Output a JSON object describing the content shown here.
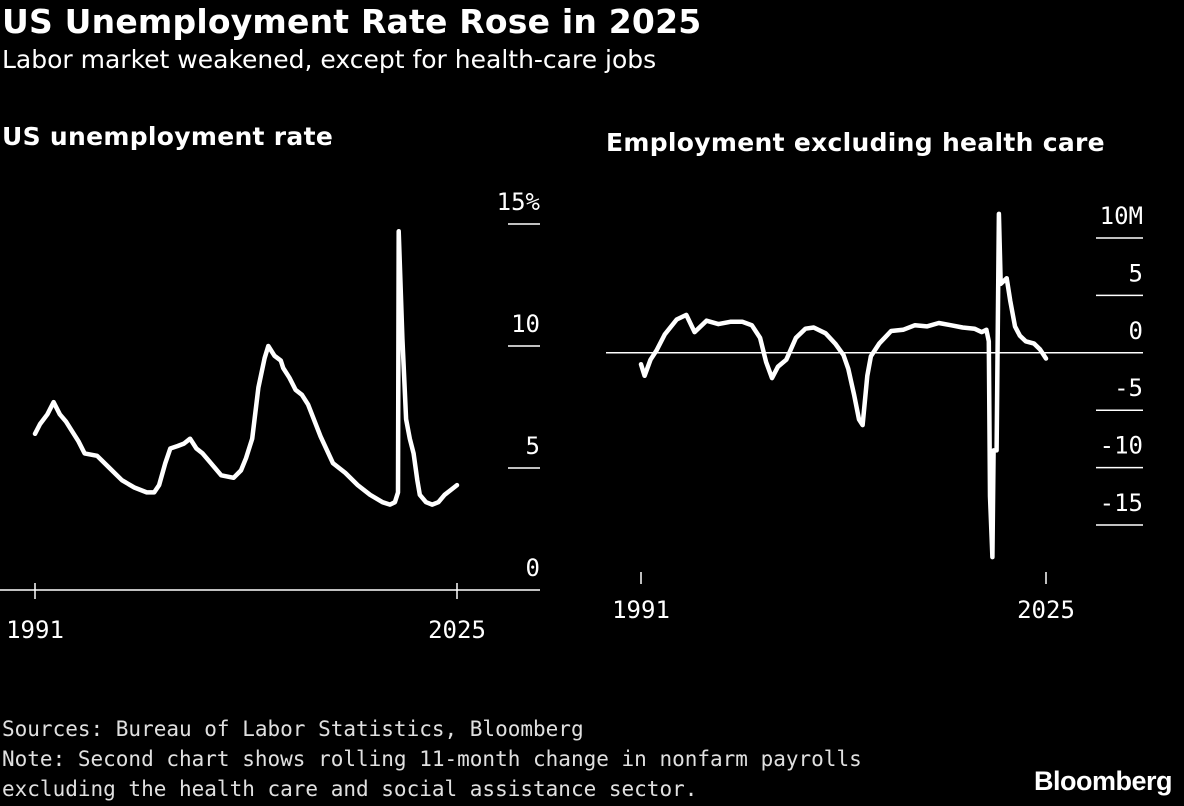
{
  "header": {
    "title": "US Unemployment Rate Rose in 2025",
    "subtitle": "Labor market weakened, except for health-care jobs"
  },
  "footer": {
    "sources": "Sources: Bureau of Labor Statistics, Bloomberg",
    "note_line1": "Note: Second chart shows rolling 11-month change in nonfarm payrolls",
    "note_line2": "excluding the health care and social assistance sector.",
    "logo": "Bloomberg"
  },
  "colors": {
    "background": "#000000",
    "line": "#ffffff",
    "text": "#ffffff"
  },
  "chart_data": [
    {
      "type": "line",
      "title": "US unemployment rate",
      "xlabel": "",
      "ylabel": "",
      "xlim": [
        1991,
        2025
      ],
      "ylim": [
        0,
        15
      ],
      "y_ticks": [
        15,
        10,
        5,
        0
      ],
      "y_tick_labels": [
        "15%",
        "10",
        "5",
        "0"
      ],
      "x_ticks": [
        1991,
        2025
      ],
      "x_tick_labels": [
        "1991",
        "2025"
      ],
      "grid": false,
      "series": [
        {
          "x": [
            1991.0,
            1991.4,
            1992.0,
            1992.5,
            1993.0,
            1993.5,
            1994.0,
            1994.5,
            1995.0,
            1996.0,
            1997.0,
            1998.0,
            1999.0,
            2000.0,
            2000.6,
            2001.0,
            2001.5,
            2001.9,
            2002.5,
            2003.0,
            2003.5,
            2004.0,
            2004.5,
            2005.0,
            2006.0,
            2007.0,
            2007.6,
            2008.0,
            2008.5,
            2009.0,
            2009.5,
            2009.8,
            2010.3,
            2010.8,
            2011.0,
            2011.5,
            2012.0,
            2012.5,
            2013.0,
            2014.0,
            2015.0,
            2016.0,
            2017.0,
            2018.0,
            2019.0,
            2019.6,
            2020.0,
            2020.25,
            2020.3,
            2020.6,
            2020.9,
            2021.2,
            2021.5,
            2021.8,
            2022.0,
            2022.5,
            2023.0,
            2023.5,
            2024.0,
            2024.5,
            2025.0
          ],
          "values": [
            6.4,
            6.8,
            7.2,
            7.7,
            7.2,
            6.9,
            6.5,
            6.1,
            5.6,
            5.5,
            5.0,
            4.5,
            4.2,
            4.0,
            4.0,
            4.3,
            5.2,
            5.8,
            5.9,
            6.0,
            6.2,
            5.8,
            5.6,
            5.3,
            4.7,
            4.6,
            4.9,
            5.4,
            6.2,
            8.3,
            9.5,
            10.0,
            9.6,
            9.4,
            9.1,
            8.7,
            8.2,
            8.0,
            7.6,
            6.3,
            5.2,
            4.8,
            4.3,
            3.9,
            3.6,
            3.5,
            3.6,
            4.0,
            14.7,
            10.3,
            7.0,
            6.2,
            5.6,
            4.5,
            3.9,
            3.6,
            3.5,
            3.6,
            3.9,
            4.1,
            4.3
          ]
        }
      ]
    },
    {
      "type": "line",
      "title": "Employment excluding health care",
      "xlabel": "",
      "ylabel": "",
      "xlim": [
        1991,
        2025
      ],
      "ylim": [
        -15,
        10
      ],
      "y_ticks": [
        10,
        5,
        0,
        -5,
        -10,
        -15
      ],
      "y_tick_labels": [
        "10M",
        "5",
        "0",
        "-5",
        "-10",
        "-15"
      ],
      "x_ticks": [
        1991,
        2025
      ],
      "x_tick_labels": [
        "1991",
        "2025"
      ],
      "zero_line": true,
      "grid": false,
      "series": [
        {
          "x": [
            1991.0,
            1991.3,
            1991.8,
            1992.3,
            1993.0,
            1994.0,
            1994.8,
            1995.5,
            1996.5,
            1997.5,
            1998.5,
            1999.5,
            2000.3,
            2001.0,
            2001.5,
            2002.0,
            2002.5,
            2003.2,
            2004.0,
            2004.8,
            2005.5,
            2006.5,
            2007.3,
            2008.0,
            2008.4,
            2008.9,
            2009.3,
            2009.6,
            2010.0,
            2010.3,
            2011.0,
            2012.0,
            2013.0,
            2014.0,
            2015.0,
            2016.0,
            2017.0,
            2018.0,
            2019.0,
            2019.6,
            2020.0,
            2020.2,
            2020.3,
            2020.5,
            2020.6,
            2020.85,
            2021.05,
            2021.2,
            2021.4,
            2021.7,
            2022.0,
            2022.4,
            2022.8,
            2023.3,
            2024.0,
            2024.5,
            2025.0
          ],
          "values": [
            -1.0,
            -2.0,
            -0.6,
            0.2,
            1.6,
            2.9,
            3.3,
            1.8,
            2.8,
            2.5,
            2.7,
            2.7,
            2.4,
            1.3,
            -0.8,
            -2.2,
            -1.2,
            -0.6,
            1.3,
            2.1,
            2.2,
            1.7,
            0.8,
            -0.2,
            -1.4,
            -3.7,
            -5.8,
            -6.3,
            -2.0,
            -0.3,
            0.8,
            1.9,
            2.0,
            2.4,
            2.3,
            2.6,
            2.4,
            2.2,
            2.1,
            1.8,
            2.0,
            1.0,
            -12.5,
            -17.8,
            -8.5,
            -8.5,
            12.1,
            6.0,
            6.2,
            6.5,
            4.5,
            2.3,
            1.5,
            1.0,
            0.8,
            0.3,
            -0.5
          ]
        }
      ]
    }
  ]
}
